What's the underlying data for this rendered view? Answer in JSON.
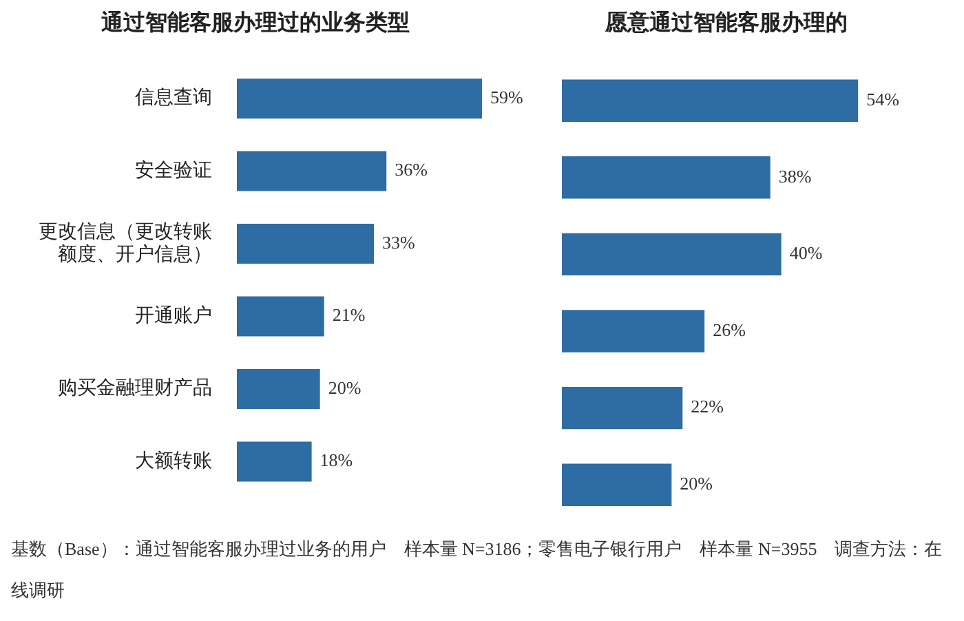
{
  "chart_data": [
    {
      "type": "bar",
      "orientation": "horizontal",
      "title": "通过智能客服办理过的业务类型",
      "categories": [
        "信息查询",
        "安全验证",
        "更改信息（更改转账额度、开户信息）",
        "开通账户",
        "购买金融理财产品",
        "大额转账"
      ],
      "values": [
        59,
        36,
        33,
        21,
        20,
        18
      ],
      "value_labels": [
        "59%",
        "36%",
        "33%",
        "21%",
        "20%",
        "18%"
      ],
      "color": "#2e6ca4",
      "tick_labels": "y",
      "annotations": [
        "基数（Base）：通过智能客服办理过业务的用户　样本量 N=3186；零售电子银行用户　样本量 N=3955　调查方法：在线调研"
      ]
    },
    {
      "type": "bar",
      "orientation": "horizontal",
      "title": "愿意通过智能客服办理的",
      "categories": [
        "信息查询",
        "安全验证",
        "更改信息（更改转账额度、开户信息）",
        "开通账户",
        "购买金融理财产品",
        "大额转账"
      ],
      "values": [
        54,
        38,
        40,
        26,
        22,
        20
      ],
      "value_labels": [
        "54%",
        "38%",
        "40%",
        "26%",
        "22%",
        "20%"
      ],
      "color": "#2e6ca4",
      "tick_labels": false
    }
  ]
}
